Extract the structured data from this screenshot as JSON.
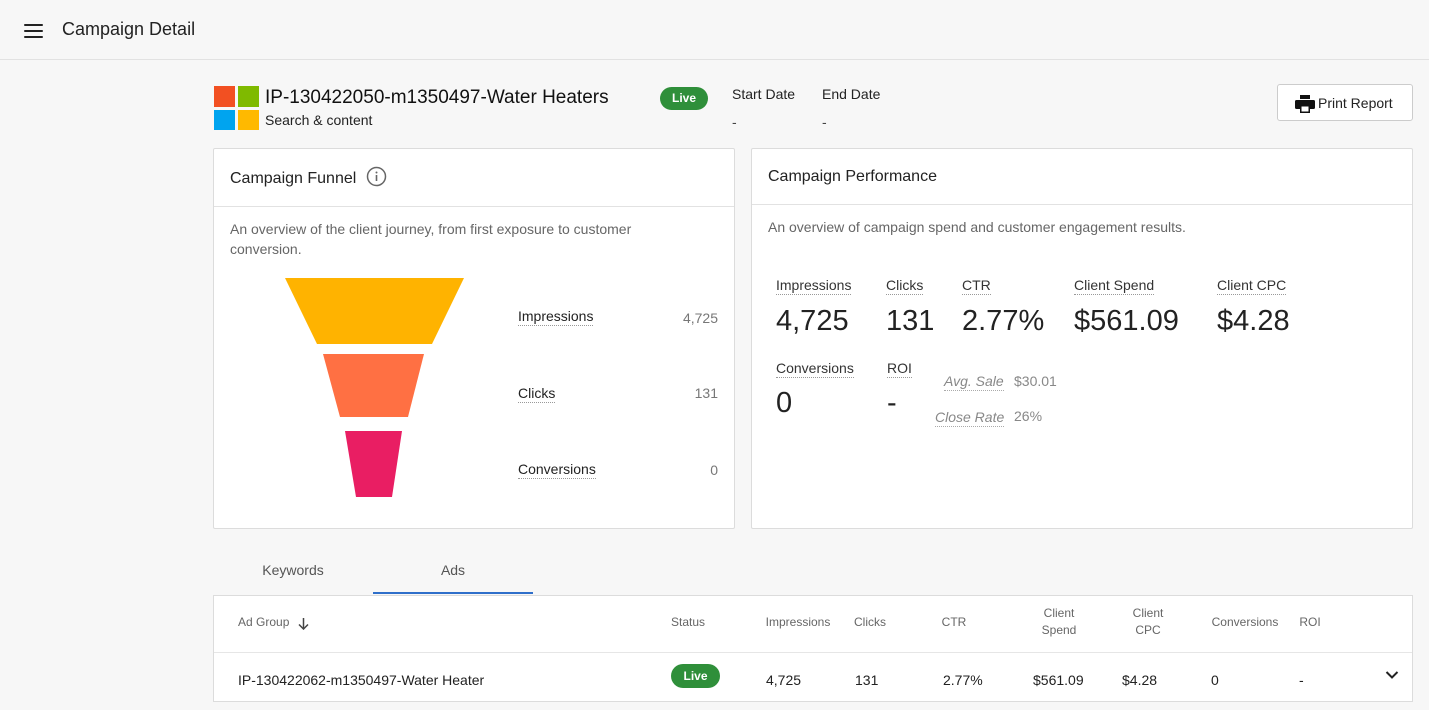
{
  "header": {
    "title": "Campaign Detail"
  },
  "campaign": {
    "name": "IP-130422050-m1350497-Water Heaters",
    "type": "Search & content",
    "status": "Live",
    "start_date_label": "Start Date",
    "start_date": "-",
    "end_date_label": "End Date",
    "end_date": "-",
    "print_label": "Print Report"
  },
  "funnel": {
    "title": "Campaign Funnel",
    "description": "An overview of the client journey, from first exposure to customer conversion.",
    "stages": [
      {
        "label": "Impressions",
        "value": "4,725",
        "color": "#FFB300"
      },
      {
        "label": "Clicks",
        "value": "131",
        "color": "#FF7043"
      },
      {
        "label": "Conversions",
        "value": "0",
        "color": "#E91E63"
      }
    ]
  },
  "performance": {
    "title": "Campaign Performance",
    "description": "An overview of campaign spend and customer engagement results.",
    "metrics": [
      {
        "label": "Impressions",
        "value": "4,725"
      },
      {
        "label": "Clicks",
        "value": "131"
      },
      {
        "label": "CTR",
        "value": "2.77%"
      },
      {
        "label": "Client Spend",
        "value": "$561.09"
      },
      {
        "label": "Client CPC",
        "value": "$4.28"
      },
      {
        "label": "Conversions",
        "value": "0"
      },
      {
        "label": "ROI",
        "value": "-"
      }
    ],
    "sub_metrics": [
      {
        "label": "Avg. Sale",
        "value": "$30.01"
      },
      {
        "label": "Close Rate",
        "value": "26%"
      }
    ]
  },
  "tabs": [
    {
      "label": "Keywords",
      "active": false
    },
    {
      "label": "Ads",
      "active": true
    }
  ],
  "table": {
    "columns": [
      {
        "line1": "Ad Group",
        "line2": ""
      },
      {
        "line1": "Status",
        "line2": ""
      },
      {
        "line1": "Impressions",
        "line2": ""
      },
      {
        "line1": "Clicks",
        "line2": ""
      },
      {
        "line1": "CTR",
        "line2": ""
      },
      {
        "line1": "Client",
        "line2": "Spend"
      },
      {
        "line1": "Client",
        "line2": "CPC"
      },
      {
        "line1": "Conversions",
        "line2": ""
      },
      {
        "line1": "ROI",
        "line2": ""
      }
    ],
    "rows": [
      {
        "ad_group": "IP-130422062-m1350497-Water Heater",
        "status": "Live",
        "impressions": "4,725",
        "clicks": "131",
        "ctr": "2.77%",
        "client_spend": "$561.09",
        "client_cpc": "$4.28",
        "conversions": "0",
        "roi": "-"
      }
    ]
  },
  "colors": {
    "live_badge": "#2f8f3a",
    "tab_active": "#2f6fca",
    "ms_red": "#F25022",
    "ms_green": "#7FBA00",
    "ms_blue": "#00A4EF",
    "ms_yellow": "#FFB900"
  }
}
